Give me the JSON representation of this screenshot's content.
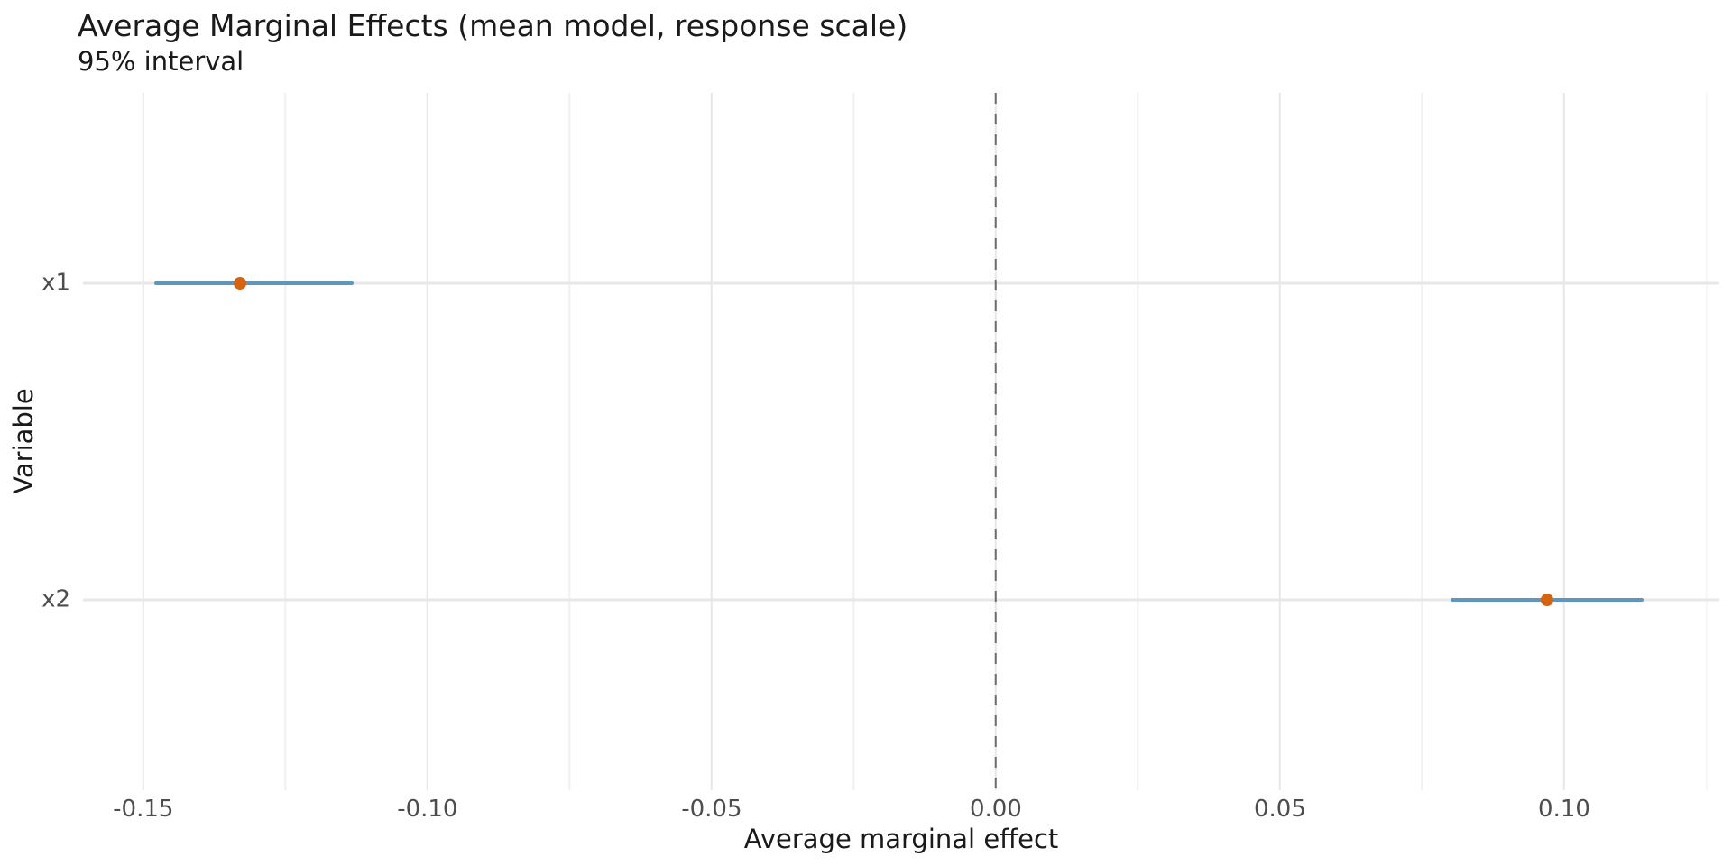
{
  "chart_data": {
    "type": "scatter",
    "subtype": "pointrange",
    "title": "Average Marginal Effects (mean model, response scale)",
    "subtitle": "95% interval",
    "xlabel": "Average marginal effect",
    "ylabel": "Variable",
    "legend_position": "none",
    "grid": "on",
    "x_axis": {
      "min": -0.1606,
      "max": 0.1273,
      "major_ticks": [
        -0.15,
        -0.1,
        -0.05,
        0,
        0.05,
        0.1
      ],
      "major_tick_labels": [
        "-0.15",
        "-0.10",
        "-0.05",
        "0.00",
        "0.05",
        "0.10"
      ],
      "minor_ticks": [
        -0.125,
        -0.075,
        -0.025,
        0.025,
        0.075,
        0.125
      ]
    },
    "y_axis": {
      "categories": [
        "x1",
        "x2"
      ]
    },
    "series": [
      {
        "name": "x1",
        "estimate": -0.133,
        "ci_low": -0.148,
        "ci_high": -0.113
      },
      {
        "name": "x2",
        "estimate": 0.097,
        "ci_low": 0.08,
        "ci_high": 0.114
      }
    ],
    "reference_line": {
      "x": 0,
      "style": "dashed"
    },
    "colors": {
      "interval": "#5B97C2",
      "point": "#D9620C",
      "grid_major": "#E7E7E7",
      "grid_minor": "#F0F0F0",
      "reference": "#6C6C6C",
      "tick_label": "#4D4D4D",
      "text": "#1A1A1A",
      "background": "#FFFFFF"
    }
  }
}
